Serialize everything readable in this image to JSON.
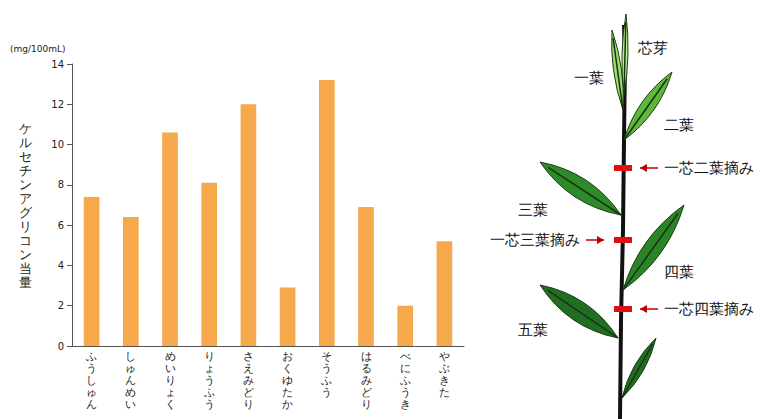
{
  "chart_data": {
    "type": "bar",
    "ylabel": "ケルセチンアグリコン当量",
    "annotations": [
      "(mg/100mL)"
    ],
    "categories": [
      "ふうしゅん",
      "しゅんめい",
      "めいりょく",
      "りょうふう",
      "さえみどり",
      "おくゆたか",
      "そうふう",
      "はるみどり",
      "べにふうき",
      "やぶきた"
    ],
    "values": [
      7.4,
      6.4,
      10.6,
      8.1,
      12.0,
      2.9,
      13.2,
      6.9,
      2.0,
      5.2
    ],
    "color": "#f6a94c",
    "ylim": [
      0,
      14
    ],
    "yticks": [
      0,
      2,
      4,
      6,
      8,
      10,
      12,
      14
    ],
    "grid": false
  },
  "diagram": {
    "leaves": [
      "芯芽",
      "一葉",
      "二葉",
      "三葉",
      "四葉",
      "五葉"
    ],
    "picking": [
      "一芯二葉摘み",
      "一芯三葉摘み",
      "一芯四葉摘み"
    ]
  }
}
